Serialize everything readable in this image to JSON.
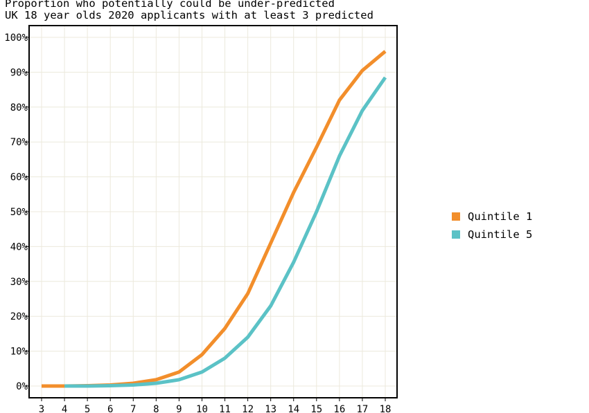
{
  "chart_data": {
    "type": "line",
    "title": "Proportion who potentially could be under-predicted",
    "subtitle": "UK 18 year olds 2020 applicants with at least 3 predicted",
    "xlabel": "",
    "ylabel": "",
    "x": [
      3,
      4,
      5,
      6,
      7,
      8,
      9,
      10,
      11,
      12,
      13,
      14,
      15,
      16,
      17,
      18
    ],
    "xlim": [
      3,
      18
    ],
    "ylim": [
      0,
      100
    ],
    "yticks": [
      0,
      10,
      20,
      30,
      40,
      50,
      60,
      70,
      80,
      90,
      100
    ],
    "ytick_labels": [
      "0%",
      "10%",
      "20%",
      "30%",
      "40%",
      "50%",
      "60%",
      "70%",
      "80%",
      "90%",
      "100%"
    ],
    "grid": true,
    "legend_position": "right",
    "series": [
      {
        "name": "Quintile 1",
        "color": "#F28E2B",
        "values": [
          0,
          0,
          0.1,
          0.3,
          0.8,
          1.8,
          4,
          9,
          16.5,
          26.5,
          41,
          55.5,
          68.5,
          82,
          90.5,
          96
        ]
      },
      {
        "name": "Quintile 5",
        "color": "#5BC2C6",
        "values": [
          null,
          0,
          0,
          0.1,
          0.3,
          0.8,
          1.8,
          4,
          8,
          14,
          23,
          35.5,
          50,
          66,
          79,
          88.5
        ]
      }
    ]
  }
}
